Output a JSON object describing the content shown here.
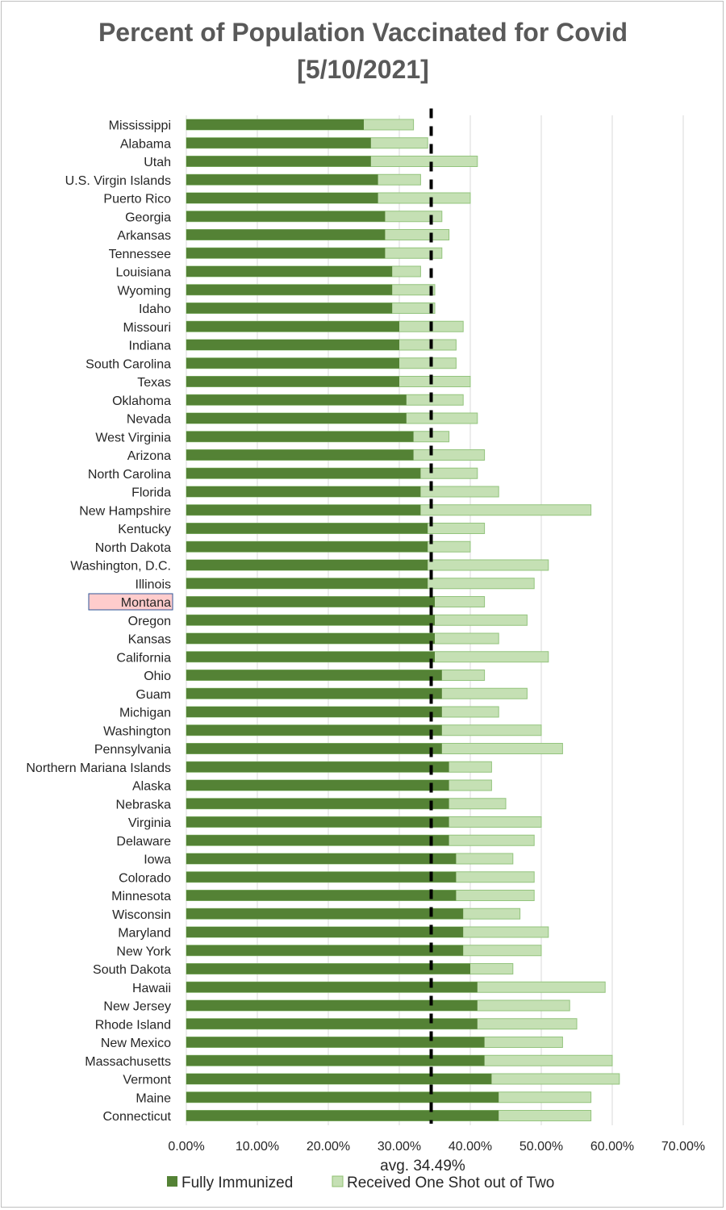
{
  "chart_data": {
    "type": "bar",
    "orientation": "horizontal",
    "title": "Percent of Population Vaccinated for Covid",
    "subtitle": "[5/10/2021]",
    "categories": [
      "Mississippi",
      "Alabama",
      "Utah",
      "U.S. Virgin Islands",
      "Puerto Rico",
      "Georgia",
      "Arkansas",
      "Tennessee",
      "Louisiana",
      "Wyoming",
      "Idaho",
      "Missouri",
      "Indiana",
      "South Carolina",
      "Texas",
      "Oklahoma",
      "Nevada",
      "West Virginia",
      "Arizona",
      "North Carolina",
      "Florida",
      "New Hampshire",
      "Kentucky",
      "North Dakota",
      "Washington, D.C.",
      "Illinois",
      "Montana",
      "Oregon",
      "Kansas",
      "California",
      "Ohio",
      "Guam",
      "Michigan",
      "Washington",
      "Pennsylvania",
      "Northern Mariana Islands",
      "Alaska",
      "Nebraska",
      "Virginia",
      "Delaware",
      "Iowa",
      "Colorado",
      "Minnesota",
      "Wisconsin",
      "Maryland",
      "New York",
      "South Dakota",
      "Hawaii",
      "New Jersey",
      "Rhode Island",
      "New Mexico",
      "Massachusetts",
      "Vermont",
      "Maine",
      "Connecticut"
    ],
    "series": [
      {
        "name": "Fully Immunized",
        "color": "#548235",
        "values": [
          25,
          26,
          26,
          27,
          27,
          28,
          28,
          28,
          29,
          29,
          29,
          30,
          30,
          30,
          30,
          31,
          31,
          32,
          32,
          33,
          33,
          33,
          34,
          34,
          34,
          34,
          35,
          35,
          35,
          35,
          36,
          36,
          36,
          36,
          36,
          37,
          37,
          37,
          37,
          37,
          38,
          38,
          38,
          39,
          39,
          39,
          40,
          41,
          41,
          41,
          42,
          42,
          43,
          44,
          44
        ]
      },
      {
        "name": "Received One Shot out of Two",
        "color": "#c5e0b4",
        "values": [
          32,
          34,
          41,
          33,
          40,
          36,
          37,
          36,
          33,
          35,
          35,
          39,
          38,
          38,
          40,
          39,
          41,
          37,
          42,
          41,
          44,
          57,
          42,
          40,
          51,
          49,
          42,
          48,
          44,
          51,
          42,
          48,
          44,
          50,
          53,
          43,
          43,
          45,
          50,
          49,
          46,
          49,
          49,
          47,
          51,
          50,
          46,
          59,
          54,
          55,
          53,
          60,
          61,
          57,
          57
        ]
      }
    ],
    "average": {
      "value": 34.49,
      "label": "avg. 34.49%"
    },
    "x_ticks": [
      "0.00%",
      "10.00%",
      "20.00%",
      "30.00%",
      "40.00%",
      "50.00%",
      "60.00%",
      "70.00%"
    ],
    "xlim": [
      0,
      70
    ],
    "highlighted_category": "Montana",
    "grid": "vertical",
    "legend_position": "bottom"
  }
}
